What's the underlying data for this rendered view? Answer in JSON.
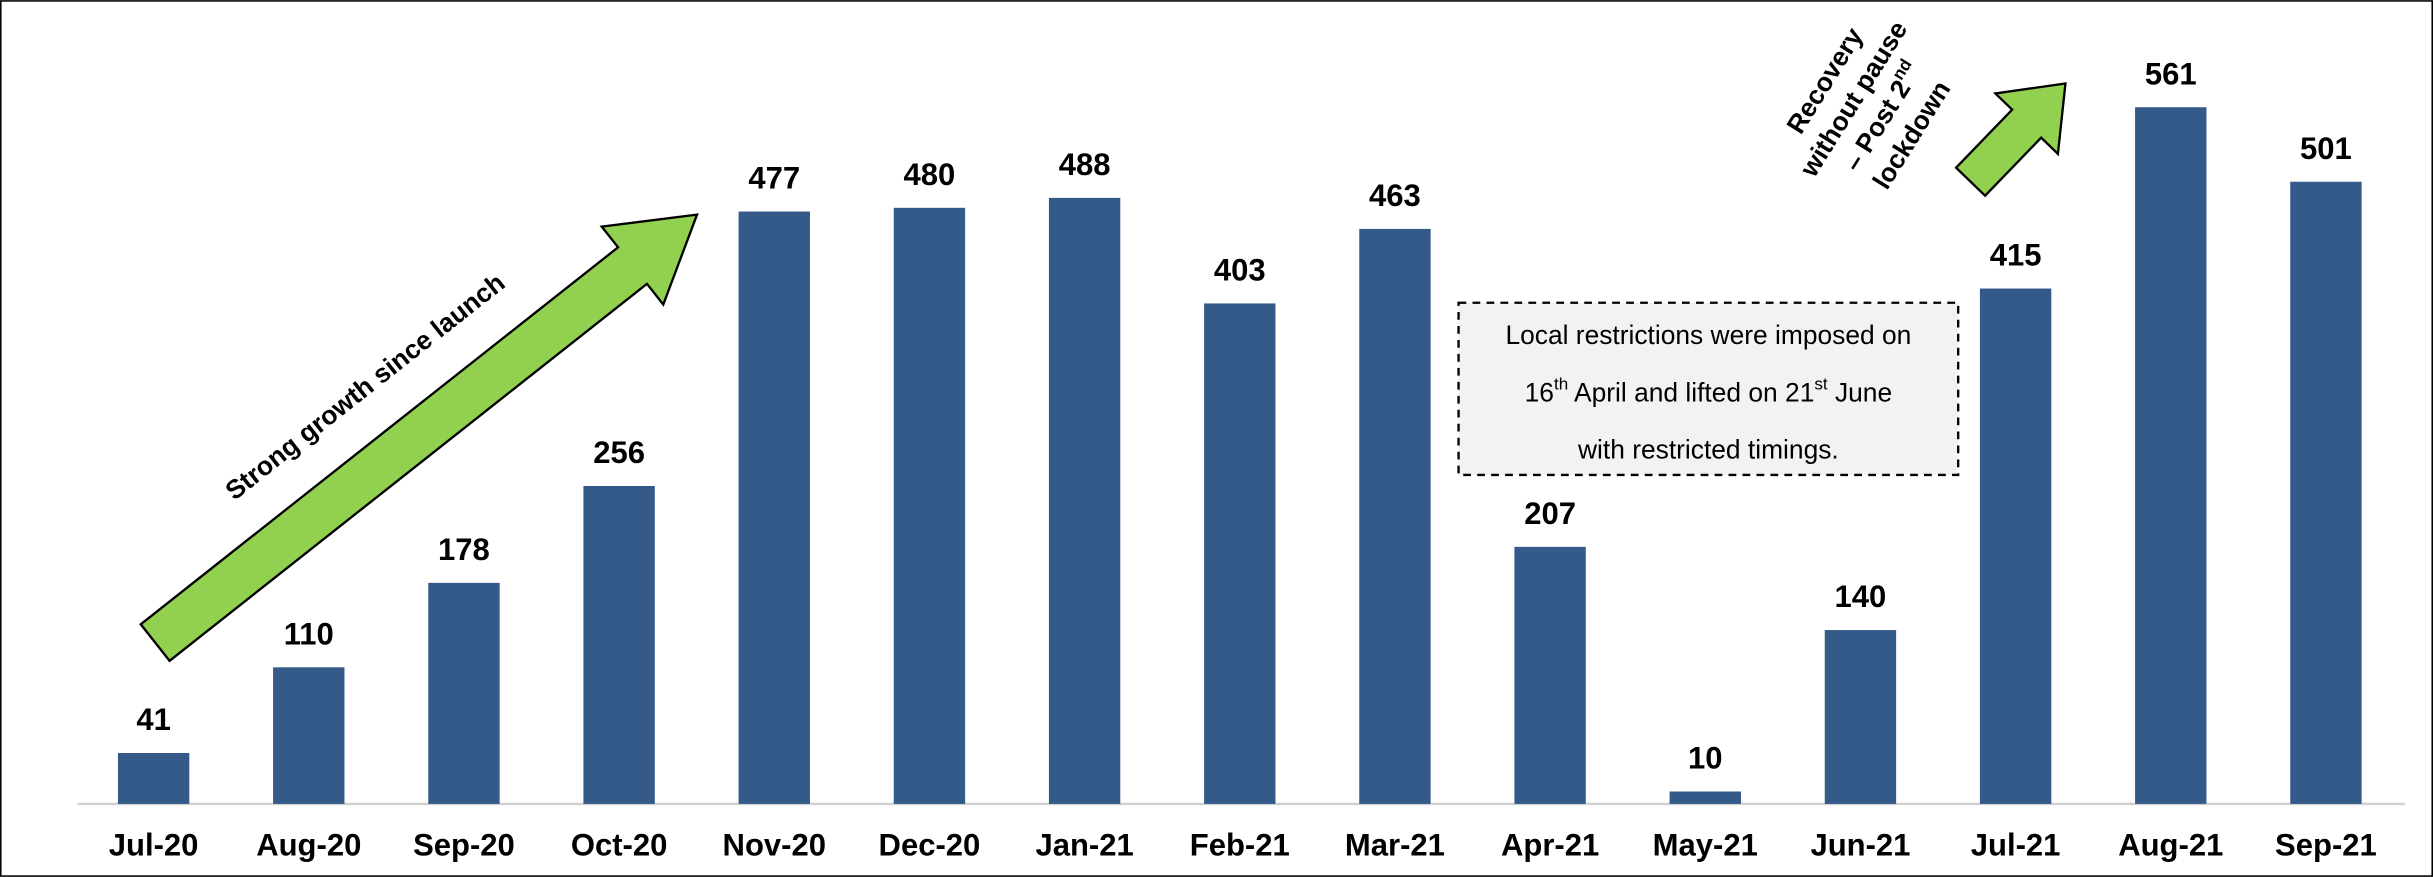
{
  "chart_data": {
    "type": "bar",
    "categories": [
      "Jul-20",
      "Aug-20",
      "Sep-20",
      "Oct-20",
      "Nov-20",
      "Dec-20",
      "Jan-21",
      "Feb-21",
      "Mar-21",
      "Apr-21",
      "May-21",
      "Jun-21",
      "Jul-21",
      "Aug-21",
      "Sep-21"
    ],
    "values": [
      41,
      110,
      178,
      256,
      477,
      480,
      488,
      403,
      463,
      207,
      10,
      140,
      415,
      561,
      501
    ],
    "color": "#335a88",
    "growth_annotation": "Strong growth since launch",
    "recovery_annotation": [
      [
        "Recovery"
      ],
      [
        "without pause"
      ],
      [
        "– Post 2",
        "nd"
      ],
      [
        "lockdown"
      ]
    ],
    "box_text": [
      [
        "Local restrictions were imposed on"
      ],
      [
        "16",
        "th",
        "  April and lifted on 21",
        "st",
        " June"
      ],
      [
        "with restricted timings."
      ]
    ]
  }
}
